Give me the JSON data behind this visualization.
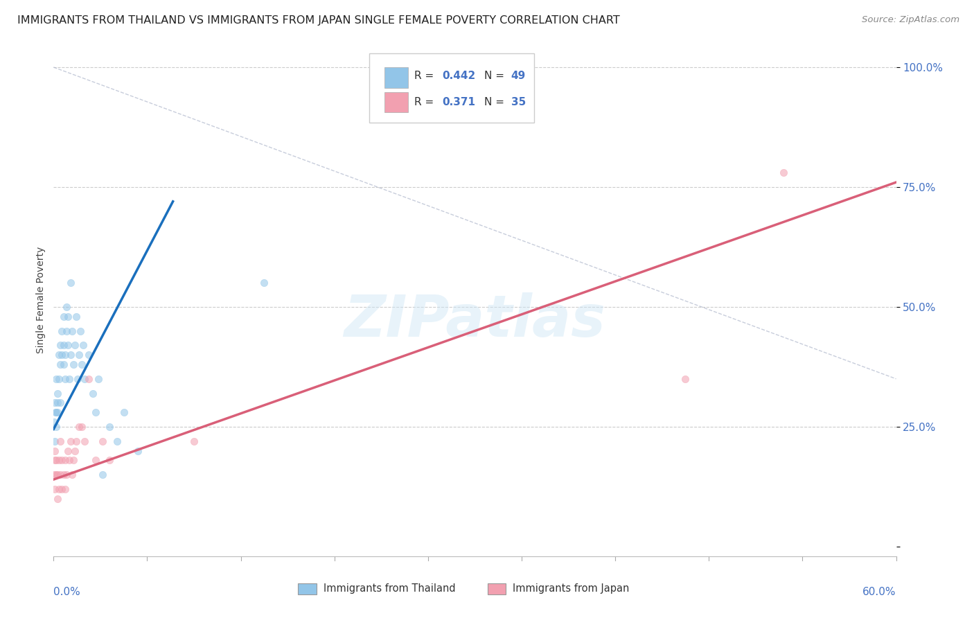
{
  "title": "IMMIGRANTS FROM THAILAND VS IMMIGRANTS FROM JAPAN SINGLE FEMALE POVERTY CORRELATION CHART",
  "source": "Source: ZipAtlas.com",
  "ylabel": "Single Female Poverty",
  "watermark": "ZIPatlas",
  "blue_color": "#92c5e8",
  "pink_color": "#f2a0b0",
  "blue_line_color": "#1a6fbd",
  "pink_line_color": "#d95f78",
  "title_fontsize": 11.5,
  "source_fontsize": 9.5,
  "scatter_alpha": 0.55,
  "scatter_size": 55,
  "legend_blue_r": "R = ",
  "legend_blue_r_val": "0.442",
  "legend_blue_n": "N = ",
  "legend_blue_n_val": "49",
  "legend_pink_r": "R = ",
  "legend_pink_r_val": "0.371",
  "legend_pink_n": "N = ",
  "legend_pink_n_val": "35",
  "legend_label_blue": "Immigrants from Thailand",
  "legend_label_pink": "Immigrants from Japan",
  "thailand_x": [
    0.0005,
    0.001,
    0.001,
    0.0015,
    0.002,
    0.002,
    0.002,
    0.003,
    0.003,
    0.003,
    0.004,
    0.004,
    0.005,
    0.005,
    0.005,
    0.006,
    0.006,
    0.007,
    0.007,
    0.007,
    0.008,
    0.008,
    0.009,
    0.009,
    0.01,
    0.01,
    0.011,
    0.012,
    0.012,
    0.013,
    0.014,
    0.015,
    0.016,
    0.017,
    0.018,
    0.019,
    0.02,
    0.021,
    0.022,
    0.025,
    0.028,
    0.03,
    0.032,
    0.035,
    0.04,
    0.045,
    0.05,
    0.06,
    0.15
  ],
  "thailand_y": [
    0.26,
    0.3,
    0.22,
    0.28,
    0.35,
    0.25,
    0.28,
    0.3,
    0.32,
    0.28,
    0.4,
    0.35,
    0.42,
    0.38,
    0.3,
    0.45,
    0.4,
    0.48,
    0.38,
    0.42,
    0.35,
    0.4,
    0.5,
    0.45,
    0.42,
    0.48,
    0.35,
    0.55,
    0.4,
    0.45,
    0.38,
    0.42,
    0.48,
    0.35,
    0.4,
    0.45,
    0.38,
    0.42,
    0.35,
    0.4,
    0.32,
    0.28,
    0.35,
    0.15,
    0.25,
    0.22,
    0.28,
    0.2,
    0.55
  ],
  "japan_x": [
    0.0005,
    0.001,
    0.001,
    0.001,
    0.002,
    0.002,
    0.003,
    0.003,
    0.004,
    0.004,
    0.005,
    0.005,
    0.006,
    0.006,
    0.007,
    0.008,
    0.008,
    0.009,
    0.01,
    0.011,
    0.012,
    0.013,
    0.014,
    0.015,
    0.016,
    0.018,
    0.02,
    0.022,
    0.025,
    0.03,
    0.035,
    0.04,
    0.1,
    0.45,
    0.52
  ],
  "japan_y": [
    0.15,
    0.12,
    0.18,
    0.2,
    0.15,
    0.18,
    0.1,
    0.15,
    0.12,
    0.18,
    0.15,
    0.22,
    0.12,
    0.18,
    0.15,
    0.18,
    0.12,
    0.15,
    0.2,
    0.18,
    0.22,
    0.15,
    0.18,
    0.2,
    0.22,
    0.25,
    0.25,
    0.22,
    0.35,
    0.18,
    0.22,
    0.18,
    0.22,
    0.35,
    0.78
  ],
  "xlim": [
    0.0,
    0.6
  ],
  "ylim": [
    -0.02,
    1.05
  ],
  "bg_color": "#ffffff",
  "grid_color": "#cccccc",
  "ytick_vals": [
    0.0,
    0.25,
    0.5,
    0.75,
    1.0
  ],
  "ytick_labels": [
    "",
    "25.0%",
    "50.0%",
    "75.0%",
    "100.0%"
  ]
}
